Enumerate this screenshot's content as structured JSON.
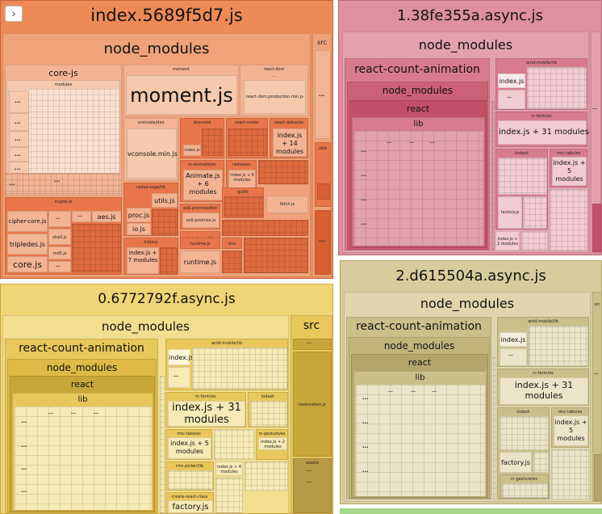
{
  "toggle": {
    "icon": "chevron-right-icon",
    "glyph": "›"
  },
  "colors": {
    "chunk1": "#ee8a55",
    "chunk2": "#de8fa0",
    "chunk3": "#efd575",
    "chunk4": "#d9cc9c",
    "strip": "#a7d88a"
  },
  "chunk1": {
    "title": "index.5689f5d7.js",
    "node_modules": "node_modules",
    "src": "src",
    "src_dots": "...",
    "utils": "utils",
    "core_js": "core-js",
    "modules": "modules",
    "moment_dir": "moment",
    "moment_js": "moment.js",
    "react_dom": "react-dom",
    "react_dom_prod": "react-dom.production.min.js",
    "vconsole_dist": "vconsole/dist",
    "vconsole_min": "vconsole.min.js",
    "dva_core": "dva-core",
    "index_js": "index.js",
    "react_router": "react-router",
    "react_redux_es": "react-redux/es",
    "index_14": "index.js + 14 modules",
    "rc_animate_es": "rc-animate/es",
    "animate_js": "Animate.js + 6 modules",
    "redux_es": "redux/es",
    "index_6": "index.js + 6 modules",
    "redux_saga_lib": "redux-saga/lib",
    "utils_js": "utils.js",
    "es6_promise_dist": "es6-promise/dist",
    "es6_promise_js": "es6-promise.js",
    "qs_lib": "qs/lib",
    "proc_js": "proc.js",
    "io_js": "io.js",
    "babel_polyfill": "babel-polyfill",
    "fetch_js": "fetch.js",
    "runtime_dir": "runtime",
    "runtime_js": "runtime.js",
    "dva": "dva",
    "history": "history",
    "index_7": "index.js + 7 modules",
    "runtime_js2": "runtime.js",
    "crypto_js": "crypto-js",
    "cipher_core": "cipher-core.js",
    "aes_js": "aes.js",
    "sha3_js": "sha3.js",
    "tripledes_js": "tripledes.js",
    "md5_js": "md5.js",
    "core_js_file": "core.js",
    "dots": "..."
  },
  "chunk2": {
    "title": "1.38fe355a.async.js",
    "node_modules": "node_modules",
    "rca": "react-count-animation",
    "node_modules2": "node_modules",
    "react": "react",
    "lib": "lib",
    "antd_mobile_lib": "antd-mobile/lib",
    "index_js": "index.js",
    "rc_form_es": "rc-form/es",
    "index_31": "index.js + 31 modules",
    "lodash": "lodash",
    "rmc_tabs_es": "rmc-tabs/es",
    "index_5": "index.js + 5 modules",
    "factory_js": "factory.js",
    "index_2": "index.js + 2 modules",
    "dots": "..."
  },
  "chunk3": {
    "title": "0.6772792f.async.js",
    "node_modules": "node_modules",
    "src": "src",
    "rca": "react-count-animation",
    "node_modules2": "node_modules",
    "react": "react",
    "lib": "lib",
    "antd_mobile_lib": "antd-mobile/lib",
    "index_js": "index.js",
    "rc_form_es": "rc-form/es",
    "lodash": "lodash",
    "index_31": "index.js + 31 modules",
    "rmc_tabs_es": "rmc-tabs/es",
    "index_5": "index.js + 5 modules",
    "rc_gesture_es": "rc-gesture/es",
    "index_2": "index.js + 2 modules",
    "rmc_picker_lib": "rmc-picker/lib",
    "index_4": "index.js + 4 modules",
    "create_react_class": "create-react-class",
    "factory_js": "factory.js",
    "reservation_js": "reservation.js",
    "assets": "assets",
    "dots": "..."
  },
  "chunk4": {
    "title": "2.d615504a.async.js",
    "node_modules": "node_modules",
    "src": "src",
    "rca": "react-count-animation",
    "node_modules2": "node_modules",
    "react": "react",
    "lib": "lib",
    "antd_mobile_lib": "antd-mobile/lib",
    "index_js": "index.js",
    "rc_form_es": "rc-form/es",
    "index_31": "index.js + 31 modules",
    "lodash": "lodash",
    "rmc_tabs_es": "rmc-tabs/es",
    "index_5": "index.js + 5 modules",
    "factory_js": "factory.js",
    "rc_gesture_es": "rc-gesture/es",
    "dots": "..."
  }
}
